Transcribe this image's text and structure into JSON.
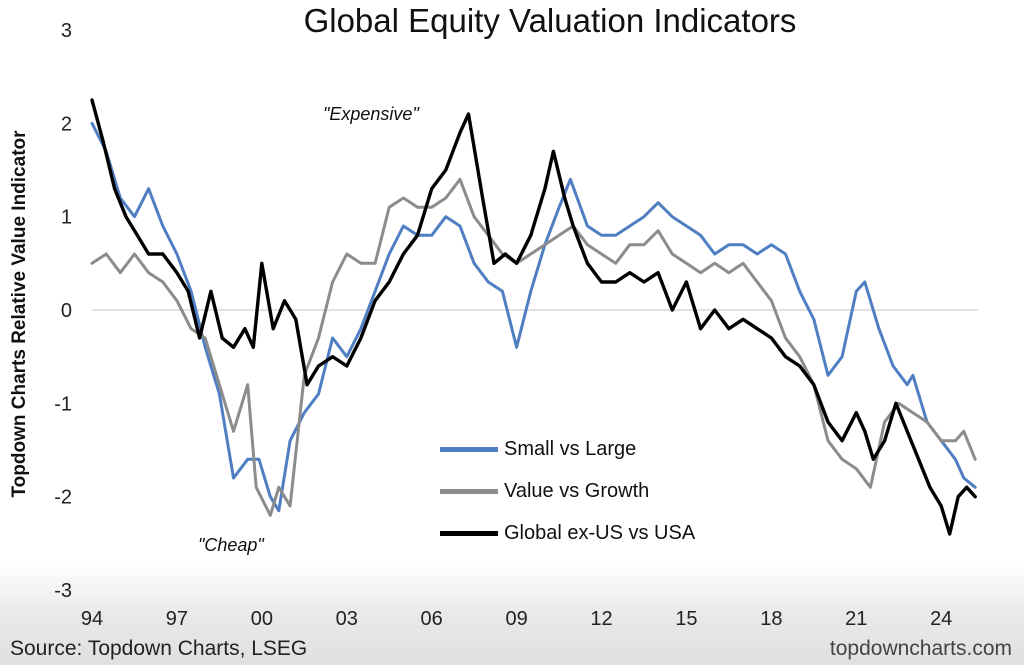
{
  "title": "Global Equity Valuation Indicators",
  "source": "Source: Topdown Charts, LSEG",
  "brand": "topdowncharts.com",
  "annotations": {
    "expensive": "\"Expensive\"",
    "cheap": "\"Cheap\""
  },
  "colors": {
    "small_vs_large": "#4f7ec2",
    "value_vs_growth": "#8c8c8c",
    "global_ex_us_vs_usa": "#000000"
  },
  "chart_data": {
    "type": "line",
    "title": "Global Equity Valuation Indicators",
    "xlabel": "",
    "ylabel": "Topdown Charts Relative Value Indicator",
    "xlim": [
      1994,
      2025.3
    ],
    "ylim": [
      -3,
      3
    ],
    "xticks": [
      "94",
      "97",
      "00",
      "03",
      "06",
      "09",
      "12",
      "15",
      "18",
      "21",
      "24"
    ],
    "yticks": [
      "-3",
      "-2",
      "-1",
      "0",
      "1",
      "2",
      "3"
    ],
    "grid": false,
    "legend": "bottom-center",
    "series": [
      {
        "name": "Small vs Large",
        "x": [
          1994.0,
          1994.5,
          1995.0,
          1995.5,
          1996.0,
          1996.5,
          1997.0,
          1997.5,
          1998.0,
          1998.5,
          1999.0,
          1999.5,
          1999.9,
          2000.3,
          2000.6,
          2001.0,
          2001.5,
          2002.0,
          2002.5,
          2003.0,
          2003.5,
          2004.0,
          2004.5,
          2005.0,
          2005.5,
          2006.0,
          2006.5,
          2007.0,
          2007.5,
          2008.0,
          2008.5,
          2009.0,
          2009.5,
          2010.0,
          2010.5,
          2010.9,
          2011.5,
          2012.0,
          2012.5,
          2013.0,
          2013.5,
          2014.0,
          2014.5,
          2015.0,
          2015.5,
          2016.0,
          2016.5,
          2017.0,
          2017.5,
          2018.0,
          2018.5,
          2019.0,
          2019.5,
          2020.0,
          2020.5,
          2021.0,
          2021.3,
          2021.8,
          2022.3,
          2022.8,
          2023.0,
          2023.5,
          2024.0,
          2024.5,
          2024.8,
          2025.2
        ],
        "y": [
          2.0,
          1.7,
          1.2,
          1.0,
          1.3,
          0.9,
          0.6,
          0.2,
          -0.4,
          -0.9,
          -1.8,
          -1.6,
          -1.6,
          -2.0,
          -2.15,
          -1.4,
          -1.1,
          -0.9,
          -0.3,
          -0.5,
          -0.2,
          0.2,
          0.6,
          0.9,
          0.8,
          0.8,
          1.0,
          0.9,
          0.5,
          0.3,
          0.2,
          -0.4,
          0.2,
          0.7,
          1.1,
          1.4,
          0.9,
          0.8,
          0.8,
          0.9,
          1.0,
          1.15,
          1.0,
          0.9,
          0.8,
          0.6,
          0.7,
          0.7,
          0.6,
          0.7,
          0.6,
          0.2,
          -0.1,
          -0.7,
          -0.5,
          0.2,
          0.3,
          -0.2,
          -0.6,
          -0.8,
          -0.7,
          -1.2,
          -1.4,
          -1.6,
          -1.8,
          -1.9
        ]
      },
      {
        "name": "Value vs Growth",
        "x": [
          1994.0,
          1994.5,
          1995.0,
          1995.5,
          1996.0,
          1996.5,
          1997.0,
          1997.5,
          1998.0,
          1998.5,
          1999.0,
          1999.5,
          1999.8,
          2000.3,
          2000.6,
          2001.0,
          2001.5,
          2002.0,
          2002.5,
          2003.0,
          2003.5,
          2004.0,
          2004.5,
          2005.0,
          2005.5,
          2006.0,
          2006.5,
          2007.0,
          2007.5,
          2008.0,
          2008.5,
          2009.0,
          2009.5,
          2010.0,
          2010.5,
          2011.0,
          2011.5,
          2012.0,
          2012.5,
          2013.0,
          2013.5,
          2014.0,
          2014.5,
          2015.0,
          2015.5,
          2016.0,
          2016.5,
          2017.0,
          2017.5,
          2018.0,
          2018.5,
          2019.0,
          2019.5,
          2020.0,
          2020.5,
          2021.0,
          2021.5,
          2022.0,
          2022.5,
          2023.0,
          2023.5,
          2024.0,
          2024.5,
          2024.8,
          2025.2
        ],
        "y": [
          0.5,
          0.6,
          0.4,
          0.6,
          0.4,
          0.3,
          0.1,
          -0.2,
          -0.3,
          -0.8,
          -1.3,
          -0.8,
          -1.9,
          -2.2,
          -1.9,
          -2.1,
          -0.7,
          -0.3,
          0.3,
          0.6,
          0.5,
          0.5,
          1.1,
          1.2,
          1.1,
          1.1,
          1.2,
          1.4,
          1.0,
          0.8,
          0.6,
          0.5,
          0.6,
          0.7,
          0.8,
          0.9,
          0.7,
          0.6,
          0.5,
          0.7,
          0.7,
          0.85,
          0.6,
          0.5,
          0.4,
          0.5,
          0.4,
          0.5,
          0.3,
          0.1,
          -0.3,
          -0.5,
          -0.8,
          -1.4,
          -1.6,
          -1.7,
          -1.9,
          -1.2,
          -1.0,
          -1.1,
          -1.2,
          -1.4,
          -1.4,
          -1.3,
          -1.6
        ]
      },
      {
        "name": "Global ex-US vs USA",
        "x": [
          1994.0,
          1994.4,
          1994.8,
          1995.2,
          1995.6,
          1996.0,
          1996.5,
          1997.0,
          1997.4,
          1997.8,
          1998.2,
          1998.6,
          1999.0,
          1999.4,
          1999.7,
          2000.0,
          2000.4,
          2000.8,
          2001.2,
          2001.6,
          2002.0,
          2002.5,
          2003.0,
          2003.5,
          2004.0,
          2004.5,
          2005.0,
          2005.5,
          2006.0,
          2006.5,
          2007.0,
          2007.3,
          2007.8,
          2008.2,
          2008.6,
          2009.0,
          2009.5,
          2010.0,
          2010.3,
          2010.7,
          2011.0,
          2011.5,
          2012.0,
          2012.5,
          2013.0,
          2013.5,
          2014.0,
          2014.5,
          2015.0,
          2015.5,
          2016.0,
          2016.5,
          2017.0,
          2017.5,
          2018.0,
          2018.5,
          2019.0,
          2019.5,
          2020.0,
          2020.5,
          2021.0,
          2021.3,
          2021.6,
          2022.0,
          2022.4,
          2022.8,
          2023.2,
          2023.6,
          2024.0,
          2024.3,
          2024.6,
          2024.9,
          2025.2
        ],
        "y": [
          2.25,
          1.8,
          1.3,
          1.0,
          0.8,
          0.6,
          0.6,
          0.4,
          0.2,
          -0.3,
          0.2,
          -0.3,
          -0.4,
          -0.2,
          -0.4,
          0.5,
          -0.2,
          0.1,
          -0.1,
          -0.8,
          -0.6,
          -0.5,
          -0.6,
          -0.3,
          0.1,
          0.3,
          0.6,
          0.8,
          1.3,
          1.5,
          1.9,
          2.1,
          1.2,
          0.5,
          0.6,
          0.5,
          0.8,
          1.3,
          1.7,
          1.2,
          0.9,
          0.5,
          0.3,
          0.3,
          0.4,
          0.3,
          0.4,
          0.0,
          0.3,
          -0.2,
          0.0,
          -0.2,
          -0.1,
          -0.2,
          -0.3,
          -0.5,
          -0.6,
          -0.8,
          -1.2,
          -1.4,
          -1.1,
          -1.3,
          -1.6,
          -1.4,
          -1.0,
          -1.3,
          -1.6,
          -1.9,
          -2.1,
          -2.4,
          -2.0,
          -1.9,
          -2.0
        ]
      }
    ]
  }
}
